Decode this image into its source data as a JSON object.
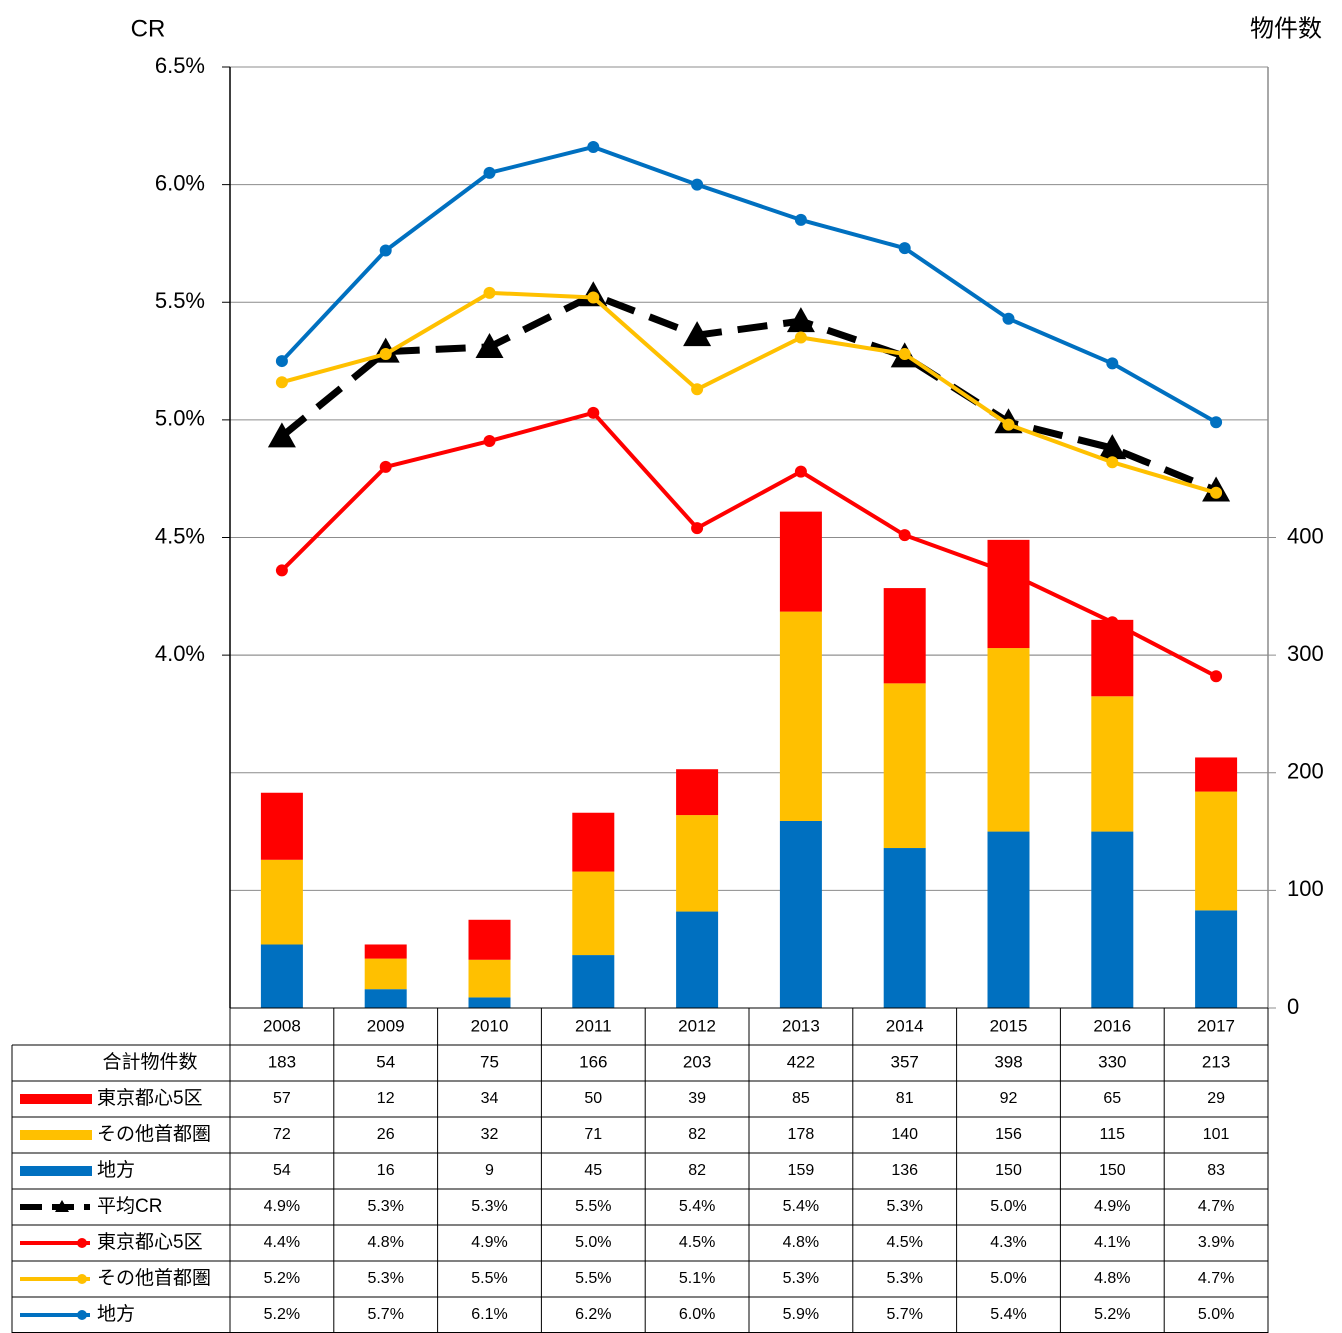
{
  "chart_data": {
    "type": "combo",
    "y_label": "CR",
    "y2_label": "物件数",
    "categories": [
      "2008",
      "2009",
      "2010",
      "2011",
      "2012",
      "2013",
      "2014",
      "2015",
      "2016",
      "2017"
    ],
    "ylim": [
      2.5,
      6.5
    ],
    "yticks": [
      {
        "value": 4.0,
        "label": "4.0%"
      },
      {
        "value": 4.5,
        "label": "4.5%"
      },
      {
        "value": 5.0,
        "label": "5.0%"
      },
      {
        "value": 5.5,
        "label": "5.5%"
      },
      {
        "value": 6.0,
        "label": "6.0%"
      },
      {
        "value": 6.5,
        "label": "6.5%"
      }
    ],
    "y2lim": [
      0,
      800
    ],
    "y2ticks": [
      0,
      100,
      200,
      300,
      400
    ],
    "grid": true,
    "total_label": "合計物件数",
    "totals": [
      183,
      54,
      75,
      166,
      203,
      422,
      357,
      398,
      330,
      213
    ],
    "series": [
      {
        "name": "東京都心5区",
        "type": "bar",
        "axis": "y2",
        "color": "#ff0000",
        "values": [
          57,
          12,
          34,
          50,
          39,
          85,
          81,
          92,
          65,
          29
        ]
      },
      {
        "name": "その他首都圏",
        "type": "bar",
        "axis": "y2",
        "color": "#ffc000",
        "values": [
          72,
          26,
          32,
          71,
          82,
          178,
          140,
          156,
          115,
          101
        ]
      },
      {
        "name": "地方",
        "type": "bar",
        "axis": "y2",
        "color": "#0070c0",
        "values": [
          54,
          16,
          9,
          45,
          82,
          159,
          136,
          150,
          150,
          83
        ]
      },
      {
        "name": "平均CR",
        "type": "line",
        "color": "#000000",
        "dashed": true,
        "marker": "triangle",
        "values": [
          4.93,
          5.29,
          5.31,
          5.53,
          5.36,
          5.42,
          5.27,
          4.99,
          4.88,
          4.7
        ],
        "value_labels": [
          "4.9%",
          "5.3%",
          "5.3%",
          "5.5%",
          "5.4%",
          "5.4%",
          "5.3%",
          "5.0%",
          "4.9%",
          "4.7%"
        ]
      },
      {
        "name": "東京都心5区",
        "type": "line",
        "color": "#ff0000",
        "marker": "circle",
        "values": [
          4.36,
          4.8,
          4.91,
          5.03,
          4.54,
          4.78,
          4.51,
          4.35,
          4.14,
          3.91
        ],
        "value_labels": [
          "4.4%",
          "4.8%",
          "4.9%",
          "5.0%",
          "4.5%",
          "4.8%",
          "4.5%",
          "4.3%",
          "4.1%",
          "3.9%"
        ]
      },
      {
        "name": "その他首都圏",
        "type": "line",
        "color": "#ffc000",
        "marker": "circle",
        "values": [
          5.16,
          5.28,
          5.54,
          5.52,
          5.13,
          5.35,
          5.28,
          4.98,
          4.82,
          4.69
        ],
        "value_labels": [
          "5.2%",
          "5.3%",
          "5.5%",
          "5.5%",
          "5.1%",
          "5.3%",
          "5.3%",
          "5.0%",
          "4.8%",
          "4.7%"
        ]
      },
      {
        "name": "地方",
        "type": "line",
        "color": "#0070c0",
        "marker": "circle",
        "values": [
          5.25,
          5.72,
          6.05,
          6.16,
          6.0,
          5.85,
          5.73,
          5.43,
          5.24,
          4.99
        ],
        "value_labels": [
          "5.2%",
          "5.7%",
          "6.1%",
          "6.2%",
          "6.0%",
          "5.9%",
          "5.7%",
          "5.4%",
          "5.2%",
          "5.0%"
        ]
      }
    ]
  }
}
